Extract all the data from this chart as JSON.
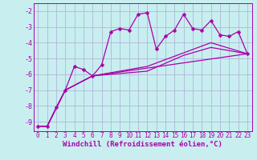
{
  "xlabel": "Windchill (Refroidissement éolien,°C)",
  "bg_color": "#c8eef0",
  "grid_color": "#b0b8d8",
  "line_color": "#aa00aa",
  "xlim": [
    -0.5,
    23.5
  ],
  "ylim": [
    -9.6,
    -1.5
  ],
  "yticks": [
    -9,
    -8,
    -7,
    -6,
    -5,
    -4,
    -3,
    -2
  ],
  "xticks": [
    0,
    1,
    2,
    3,
    4,
    5,
    6,
    7,
    8,
    9,
    10,
    11,
    12,
    13,
    14,
    15,
    16,
    17,
    18,
    19,
    20,
    21,
    22,
    23
  ],
  "xlabel_fontsize": 6.5,
  "tick_fontsize": 5.5,
  "series": [
    {
      "points": [
        [
          0,
          -9.3
        ],
        [
          1,
          -9.3
        ],
        [
          2,
          -8.1
        ],
        [
          3,
          -7.0
        ],
        [
          4,
          -5.5
        ],
        [
          5,
          -5.7
        ],
        [
          6,
          -6.1
        ],
        [
          7,
          -5.4
        ],
        [
          8,
          -3.3
        ],
        [
          9,
          -3.1
        ],
        [
          10,
          -3.2
        ],
        [
          11,
          -2.2
        ],
        [
          12,
          -2.1
        ],
        [
          13,
          -4.4
        ],
        [
          14,
          -3.6
        ],
        [
          15,
          -3.2
        ],
        [
          16,
          -2.2
        ],
        [
          17,
          -3.1
        ],
        [
          18,
          -3.2
        ],
        [
          19,
          -2.6
        ],
        [
          20,
          -3.5
        ],
        [
          21,
          -3.6
        ],
        [
          22,
          -3.3
        ],
        [
          23,
          -4.7
        ]
      ],
      "lw": 0.9,
      "ms": 2.5
    },
    {
      "points": [
        [
          0,
          -9.3
        ],
        [
          1,
          -9.3
        ],
        [
          3,
          -7.0
        ],
        [
          6,
          -6.1
        ],
        [
          23,
          -4.7
        ]
      ],
      "lw": 0.9,
      "ms": 0
    },
    {
      "points": [
        [
          0,
          -9.3
        ],
        [
          1,
          -9.3
        ],
        [
          3,
          -7.0
        ],
        [
          6,
          -6.1
        ],
        [
          12,
          -5.8
        ],
        [
          16,
          -4.8
        ],
        [
          19,
          -4.3
        ],
        [
          23,
          -4.7
        ]
      ],
      "lw": 0.9,
      "ms": 0
    },
    {
      "points": [
        [
          0,
          -9.3
        ],
        [
          1,
          -9.3
        ],
        [
          3,
          -7.0
        ],
        [
          6,
          -6.1
        ],
        [
          12,
          -5.5
        ],
        [
          19,
          -4.0
        ],
        [
          23,
          -4.7
        ]
      ],
      "lw": 0.9,
      "ms": 0
    }
  ]
}
